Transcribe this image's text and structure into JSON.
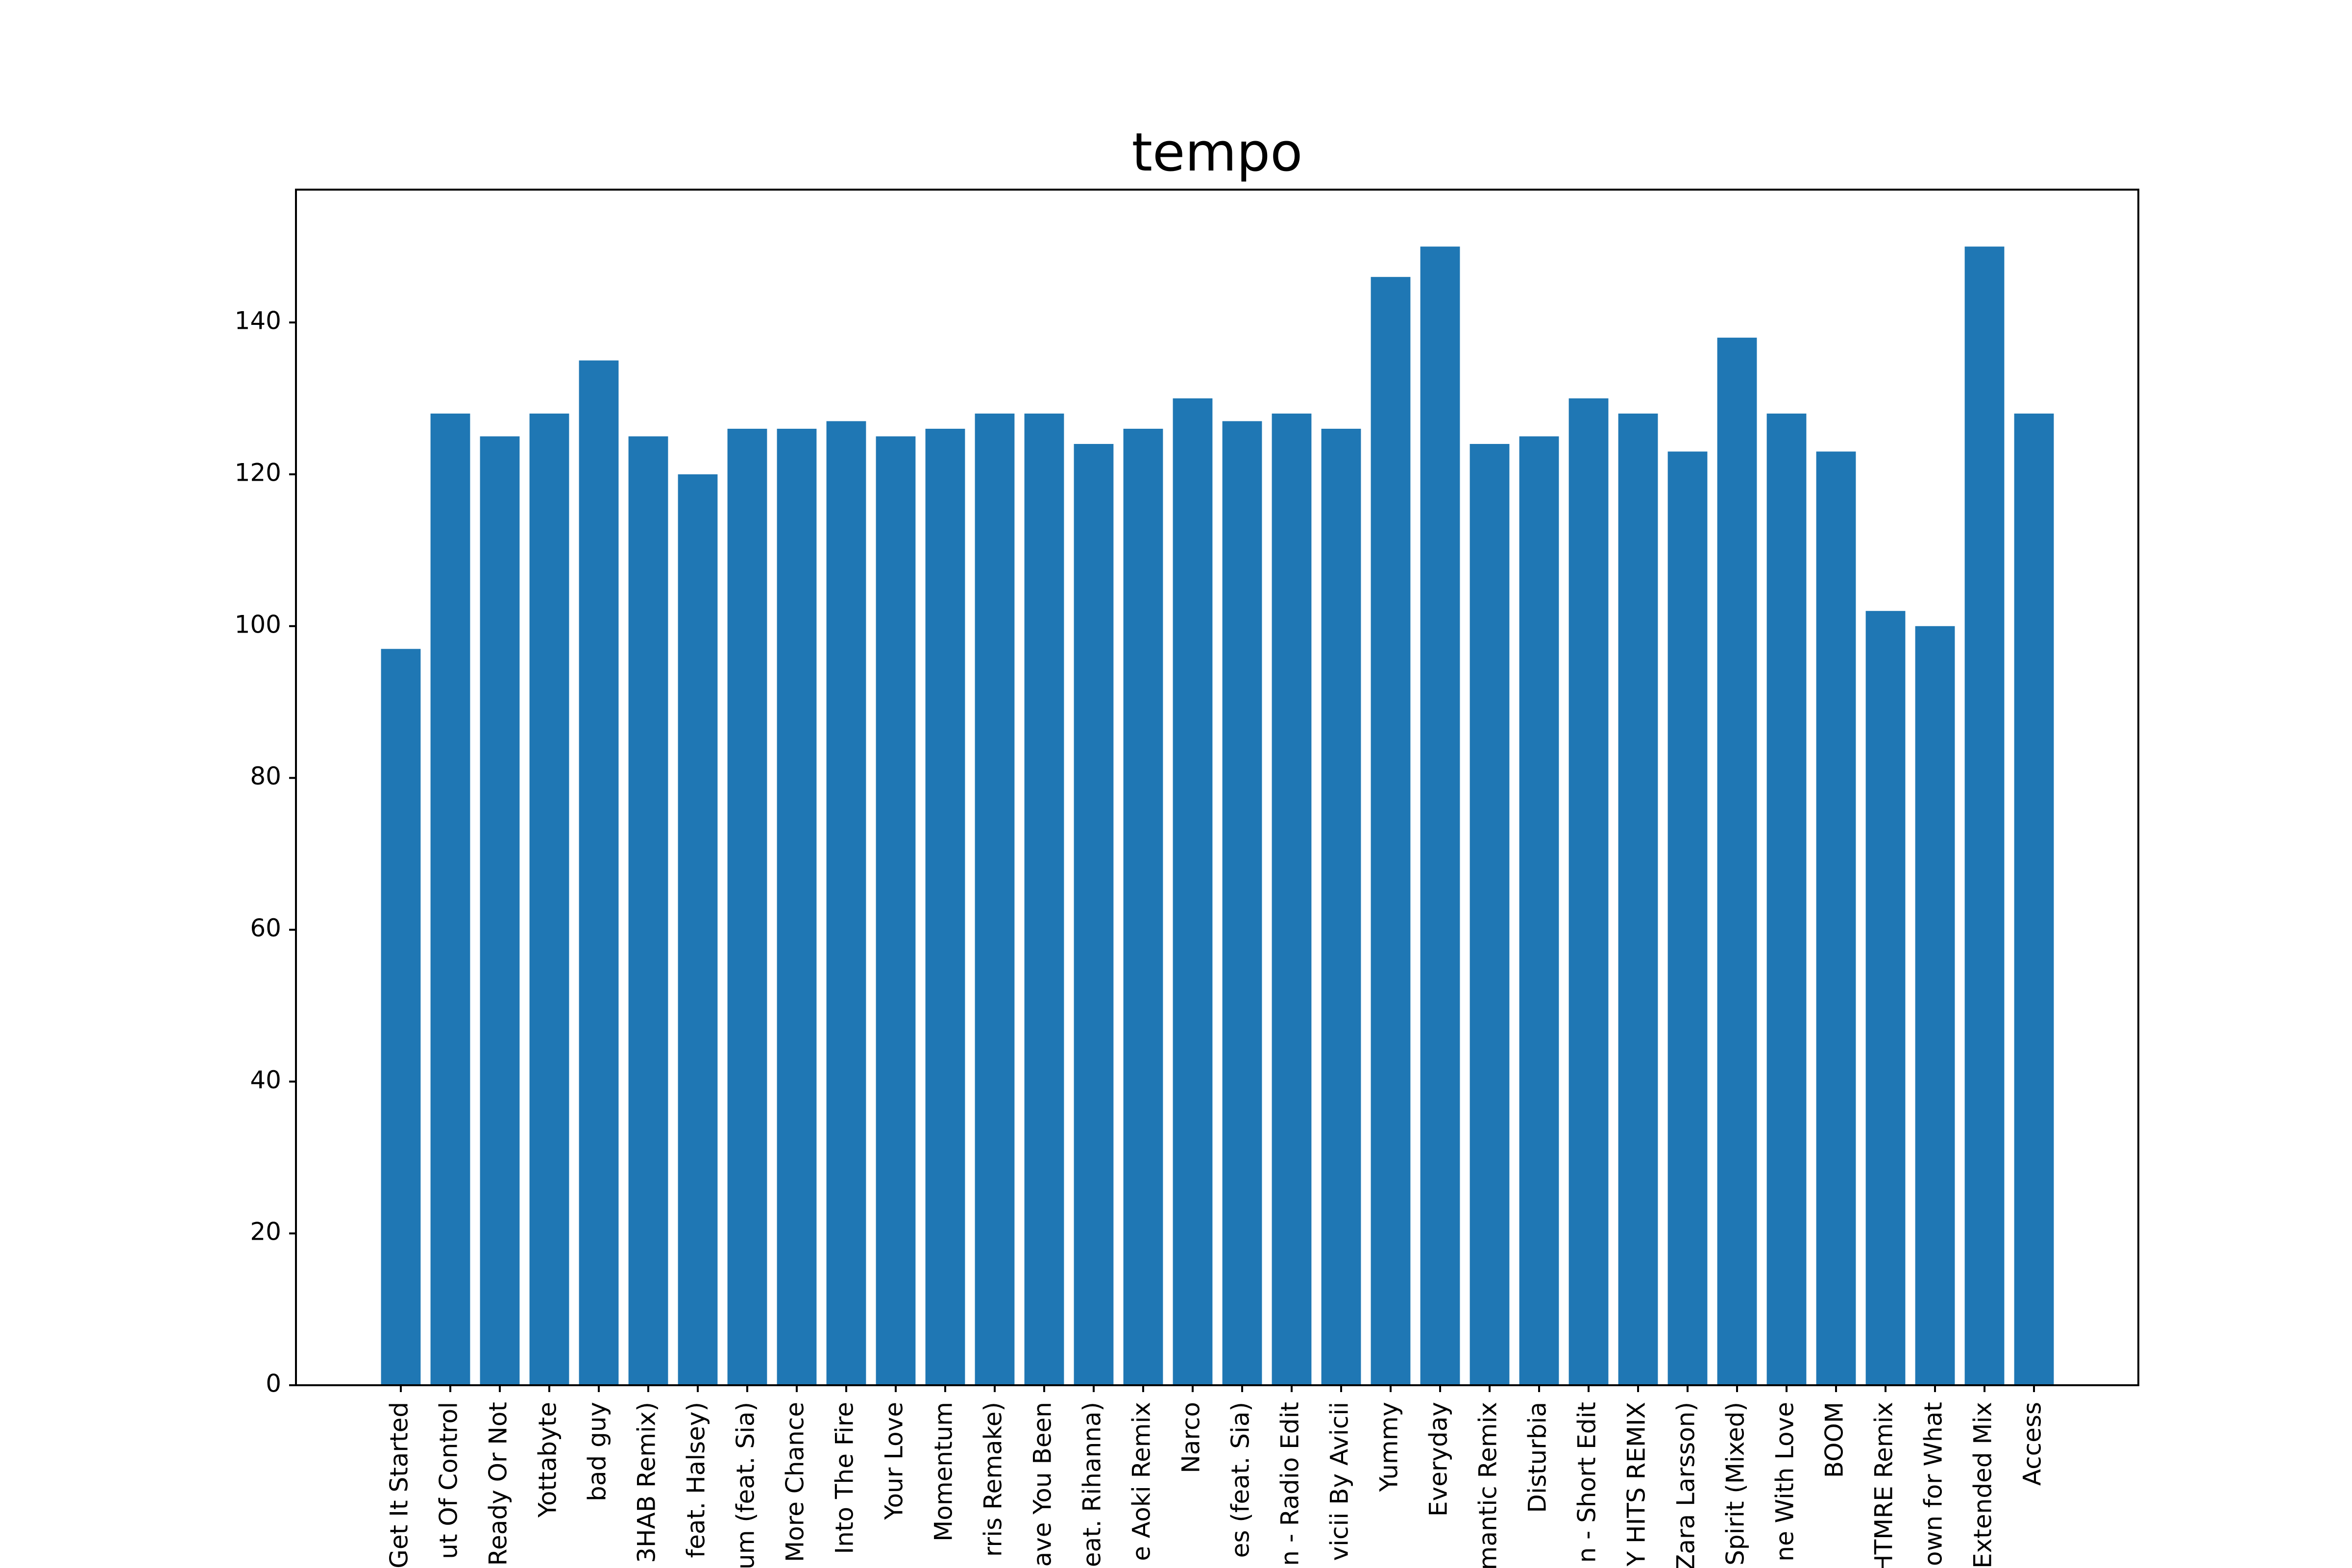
{
  "chart_data": {
    "type": "bar",
    "title": "tempo",
    "xlabel": "",
    "ylabel": "",
    "ylim": [
      0,
      157.5
    ],
    "yticks": [
      0,
      20,
      40,
      60,
      80,
      100,
      120,
      140
    ],
    "grid": false,
    "legend": "none",
    "bar_color": "#1f77b4",
    "categories": [
      "Get It Started",
      "ut Of Control",
      "Ready Or Not",
      "Yottabyte",
      "bad guy",
      "3HAB Remix)",
      "feat. Halsey)",
      "um (feat. Sia)",
      "More Chance",
      "Into The Fire",
      "Your Love",
      "Momentum",
      "rris Remake)",
      "ave You Been",
      "eat. Rihanna)",
      "e Aoki Remix",
      "Narco",
      "es (feat. Sia)",
      "n - Radio Edit",
      "vicii By Avicii",
      "Yummy",
      "Everyday",
      "mantic Remix",
      "Disturbia",
      "n - Short Edit",
      "Y HITS REMIX",
      "Zara Larsson)",
      "Spirit (Mixed)",
      "ne With Love",
      "BOOM",
      "HTMRE Remix",
      "own for What",
      "Extended Mix",
      "Access"
    ],
    "values": [
      97,
      128,
      125,
      128,
      135,
      125,
      120,
      126,
      126,
      127,
      125,
      126,
      128,
      128,
      124,
      126,
      130,
      127,
      128,
      126,
      146,
      150,
      124,
      125,
      130,
      128,
      123,
      138,
      128,
      123,
      102,
      100,
      150,
      128
    ]
  }
}
